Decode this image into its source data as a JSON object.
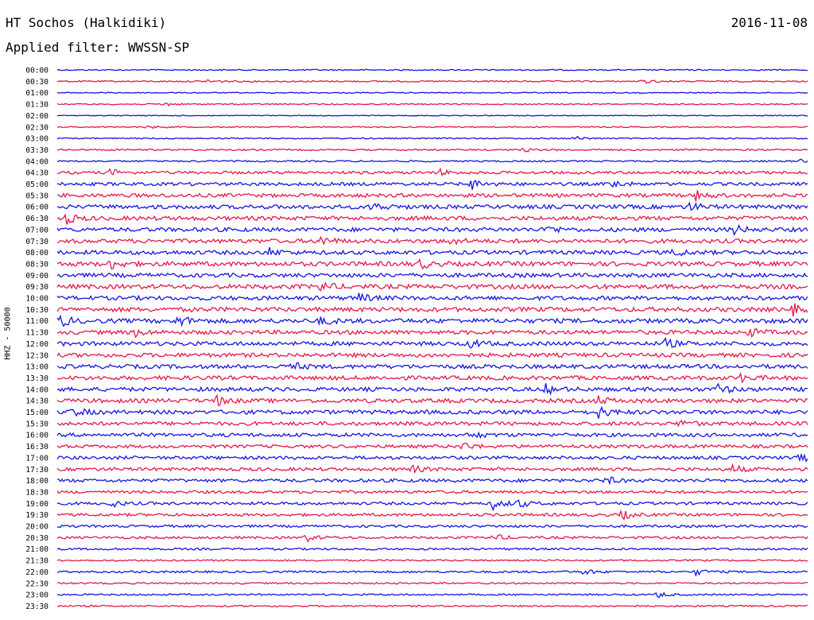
{
  "header": {
    "station": "HT Sochos (Halkidiki)",
    "date": "2016-11-08",
    "filter": "Applied filter: WWSSN-SP"
  },
  "chart_data": {
    "type": "line",
    "title": "HT Sochos (Halkidiki)",
    "subtitle": "Applied filter: WWSSN-SP",
    "ylabel": "HHZ - 50000",
    "xlabel": "",
    "grid": false,
    "legend": "none",
    "colors": [
      "#1414e6",
      "#e6174a"
    ],
    "rows": [
      {
        "time": "00:00",
        "amp": 0.15,
        "events": []
      },
      {
        "time": "00:30",
        "amp": 0.18,
        "events": [
          [
            0.2,
            0.5
          ],
          [
            0.78,
            0.5
          ]
        ]
      },
      {
        "time": "01:00",
        "amp": 0.12,
        "events": []
      },
      {
        "time": "01:30",
        "amp": 0.15,
        "events": [
          [
            0.14,
            0.6
          ]
        ]
      },
      {
        "time": "02:00",
        "amp": 0.1,
        "events": []
      },
      {
        "time": "02:30",
        "amp": 0.15,
        "events": [
          [
            0.12,
            0.4
          ]
        ]
      },
      {
        "time": "03:00",
        "amp": 0.15,
        "events": [
          [
            0.69,
            0.5
          ]
        ]
      },
      {
        "time": "03:30",
        "amp": 0.2,
        "events": [
          [
            0.62,
            0.5
          ]
        ]
      },
      {
        "time": "04:00",
        "amp": 0.2,
        "events": [
          [
            0.99,
            0.8
          ]
        ]
      },
      {
        "time": "04:30",
        "amp": 0.35,
        "events": [
          [
            0.07,
            0.8
          ],
          [
            0.51,
            0.7
          ]
        ]
      },
      {
        "time": "05:00",
        "amp": 0.4,
        "events": [
          [
            0.55,
            1.4
          ],
          [
            0.74,
            1.0
          ]
        ]
      },
      {
        "time": "05:30",
        "amp": 0.45,
        "events": [
          [
            0.85,
            1.3
          ]
        ]
      },
      {
        "time": "06:00",
        "amp": 0.5,
        "events": [
          [
            0.42,
            1.2
          ],
          [
            0.84,
            1.2
          ]
        ]
      },
      {
        "time": "06:30",
        "amp": 0.5,
        "events": [
          [
            0.01,
            1.4
          ]
        ]
      },
      {
        "time": "07:00",
        "amp": 0.5,
        "events": [
          [
            0.65,
            1.2
          ],
          [
            0.9,
            1.3
          ]
        ]
      },
      {
        "time": "07:30",
        "amp": 0.5,
        "events": [
          [
            0.35,
            1.2
          ],
          [
            0.52,
            1.0
          ]
        ]
      },
      {
        "time": "08:00",
        "amp": 0.5,
        "events": [
          [
            0.28,
            1.1
          ],
          [
            0.82,
            1.1
          ]
        ]
      },
      {
        "time": "08:30",
        "amp": 0.55,
        "events": [
          [
            0.07,
            1.2
          ],
          [
            0.48,
            1.3
          ]
        ]
      },
      {
        "time": "09:00",
        "amp": 0.5,
        "events": []
      },
      {
        "time": "09:30",
        "amp": 0.55,
        "events": [
          [
            0.35,
            1.3
          ]
        ]
      },
      {
        "time": "10:00",
        "amp": 0.5,
        "events": [
          [
            0.4,
            1.2
          ]
        ]
      },
      {
        "time": "10:30",
        "amp": 0.55,
        "events": [
          [
            0.98,
            1.3
          ]
        ]
      },
      {
        "time": "11:00",
        "amp": 0.55,
        "events": [
          [
            0.003,
            1.4
          ],
          [
            0.16,
            1.5
          ],
          [
            0.35,
            1.0
          ]
        ]
      },
      {
        "time": "11:30",
        "amp": 0.5,
        "events": [
          [
            0.1,
            1.1
          ],
          [
            0.92,
            1.1
          ]
        ]
      },
      {
        "time": "12:00",
        "amp": 0.5,
        "events": [
          [
            0.55,
            1.1
          ],
          [
            0.81,
            1.1
          ]
        ]
      },
      {
        "time": "12:30",
        "amp": 0.5,
        "events": []
      },
      {
        "time": "13:00",
        "amp": 0.5,
        "events": [
          [
            0.31,
            1.1
          ]
        ]
      },
      {
        "time": "13:30",
        "amp": 0.5,
        "events": [
          [
            0.91,
            0.9
          ]
        ]
      },
      {
        "time": "14:00",
        "amp": 0.5,
        "events": [
          [
            0.65,
            1.2
          ],
          [
            0.88,
            1.3
          ]
        ]
      },
      {
        "time": "14:30",
        "amp": 0.5,
        "events": [
          [
            0.21,
            1.3
          ],
          [
            0.72,
            1.0
          ]
        ]
      },
      {
        "time": "15:00",
        "amp": 0.5,
        "events": [
          [
            0.02,
            1.2
          ],
          [
            0.72,
            1.5
          ]
        ]
      },
      {
        "time": "15:30",
        "amp": 0.45,
        "events": [
          [
            0.83,
            1.0
          ]
        ]
      },
      {
        "time": "16:00",
        "amp": 0.45,
        "events": [
          [
            0.55,
            1.0
          ]
        ]
      },
      {
        "time": "16:30",
        "amp": 0.4,
        "events": [
          [
            0.54,
            1.0
          ]
        ]
      },
      {
        "time": "17:00",
        "amp": 0.4,
        "events": [
          [
            0.99,
            1.0
          ]
        ]
      },
      {
        "time": "17:30",
        "amp": 0.4,
        "events": [
          [
            0.47,
            1.0
          ],
          [
            0.9,
            1.0
          ]
        ]
      },
      {
        "time": "18:00",
        "amp": 0.4,
        "events": [
          [
            0.73,
            1.0
          ]
        ]
      },
      {
        "time": "18:30",
        "amp": 0.35,
        "events": []
      },
      {
        "time": "19:00",
        "amp": 0.35,
        "events": [
          [
            0.07,
            0.9
          ],
          [
            0.58,
            1.4
          ],
          [
            0.61,
            1.3
          ]
        ]
      },
      {
        "time": "19:30",
        "amp": 0.35,
        "events": [
          [
            0.75,
            1.3
          ]
        ]
      },
      {
        "time": "20:00",
        "amp": 0.3,
        "events": []
      },
      {
        "time": "20:30",
        "amp": 0.3,
        "events": [
          [
            0.33,
            1.0
          ],
          [
            0.58,
            0.9
          ]
        ]
      },
      {
        "time": "21:00",
        "amp": 0.25,
        "events": []
      },
      {
        "time": "21:30",
        "amp": 0.2,
        "events": []
      },
      {
        "time": "22:00",
        "amp": 0.25,
        "events": [
          [
            0.7,
            0.8
          ],
          [
            0.85,
            0.8
          ]
        ]
      },
      {
        "time": "22:30",
        "amp": 0.2,
        "events": []
      },
      {
        "time": "23:00",
        "amp": 0.2,
        "events": [
          [
            0.8,
            0.8
          ]
        ]
      },
      {
        "time": "23:30",
        "amp": 0.2,
        "events": []
      }
    ]
  }
}
